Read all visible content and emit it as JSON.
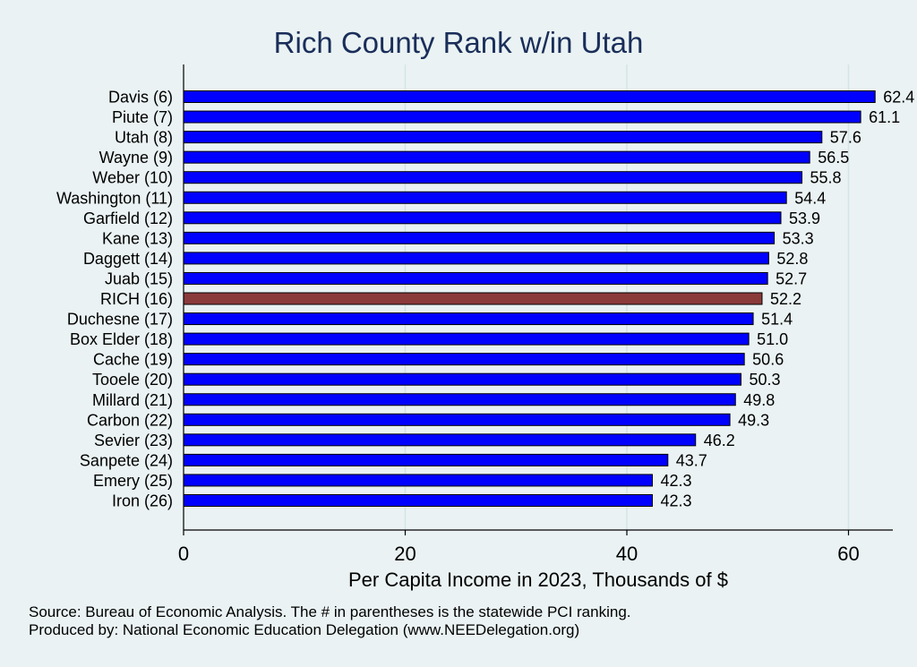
{
  "chart_data": {
    "type": "bar",
    "orientation": "horizontal",
    "title": "Rich County Rank w/in Utah",
    "xlabel": "Per Capita Income in 2023, Thousands of $",
    "ylabel": "",
    "xlim": [
      0,
      64
    ],
    "xticks": [
      0,
      20,
      40,
      60
    ],
    "grid": true,
    "categories": [
      "Davis  (6)",
      "Piute  (7)",
      "Utah  (8)",
      "Wayne  (9)",
      "Weber (10)",
      "Washington (11)",
      "Garfield (12)",
      "Kane (13)",
      "Daggett (14)",
      "Juab (15)",
      "RICH (16)",
      "Duchesne (17)",
      "Box Elder (18)",
      "Cache (19)",
      "Tooele (20)",
      "Millard (21)",
      "Carbon (22)",
      "Sevier (23)",
      "Sanpete (24)",
      "Emery (25)",
      "Iron (26)"
    ],
    "values": [
      62.4,
      61.1,
      57.6,
      56.5,
      55.8,
      54.4,
      53.9,
      53.3,
      52.8,
      52.7,
      52.2,
      51.4,
      51.0,
      50.6,
      50.3,
      49.8,
      49.3,
      46.2,
      43.7,
      42.3,
      42.3
    ],
    "value_labels": [
      "62.4",
      "61.1",
      "57.6",
      "56.5",
      "55.8",
      "54.4",
      "53.9",
      "53.3",
      "52.8",
      "52.7",
      "52.2",
      "51.4",
      "51.0",
      "50.6",
      "50.3",
      "49.8",
      "49.3",
      "46.2",
      "43.7",
      "42.3",
      "42.3"
    ],
    "highlight_index": 10,
    "colors": {
      "bar": "#0000ff",
      "highlight": "#8b3a3a",
      "title": "#1a2e5a",
      "grid": "#d5e4e7",
      "background": "#eaf2f3"
    }
  },
  "footnote": {
    "source": "Source: Bureau of Economic Analysis. The # in parentheses is the statewide PCI ranking.",
    "produced_by": "Produced by: National Economic Education Delegation (www.NEEDelegation.org)"
  }
}
